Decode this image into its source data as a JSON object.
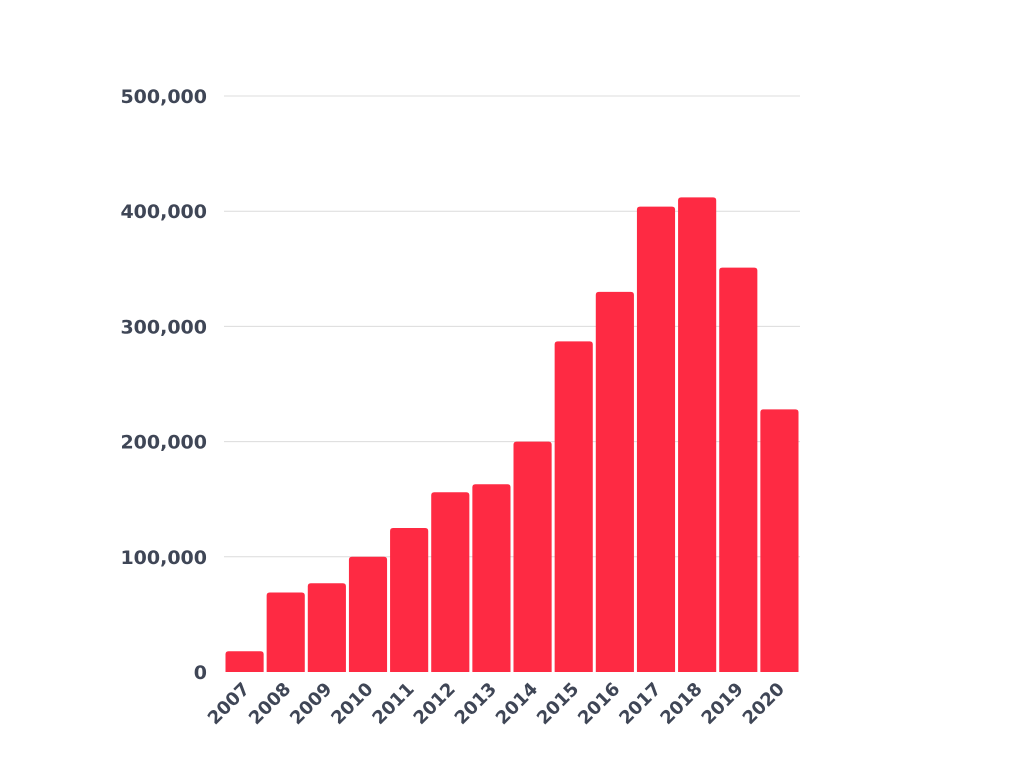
{
  "chart_data": {
    "type": "bar",
    "title": "",
    "xlabel": "",
    "ylabel": "",
    "categories": [
      "2007",
      "2008",
      "2009",
      "2010",
      "2011",
      "2012",
      "2013",
      "2014",
      "2015",
      "2016",
      "2017",
      "2018",
      "2019",
      "2020"
    ],
    "values": [
      18000,
      69000,
      77000,
      100000,
      125000,
      156000,
      163000,
      200000,
      287000,
      330000,
      404000,
      412000,
      351000,
      228000
    ],
    "ylim": [
      0,
      500000
    ],
    "yticks": [
      0,
      100000,
      200000,
      300000,
      400000,
      500000
    ],
    "ytick_labels": [
      "0",
      "100,000",
      "200,000",
      "300,000",
      "400,000",
      "500,000"
    ],
    "grid": true,
    "bar_color": "#fe2a43",
    "grid_color": "#dcdcdc",
    "text_color": "#3f4656"
  }
}
